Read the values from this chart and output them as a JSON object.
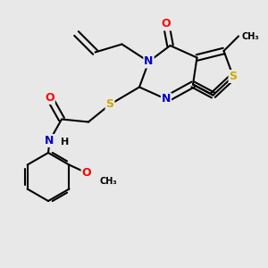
{
  "background_color": "#e8e8e8",
  "atom_colors": {
    "C": "#000000",
    "N": "#0000cc",
    "O": "#ff0000",
    "S": "#ccaa00",
    "H": "#000000"
  },
  "figsize": [
    3.0,
    3.0
  ],
  "dpi": 100
}
